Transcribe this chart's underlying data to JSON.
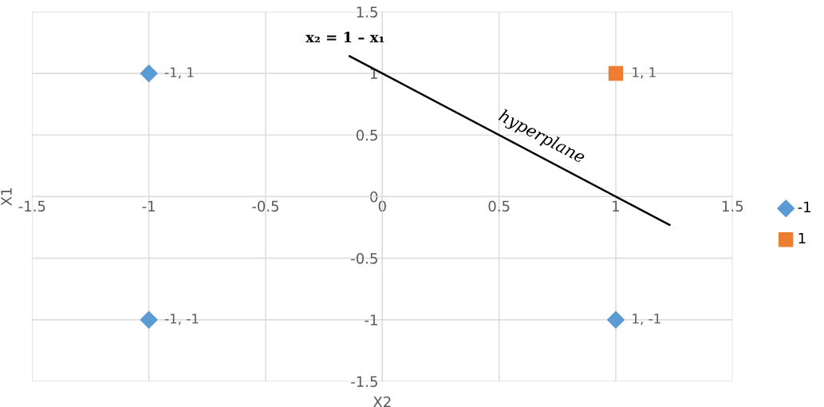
{
  "chart_data": {
    "type": "scatter",
    "xlabel": "X2",
    "ylabel": "X1",
    "xlim": [
      -1.5,
      1.5
    ],
    "ylim": [
      -1.5,
      1.5
    ],
    "xticks": [
      -1.5,
      -1,
      -0.5,
      0,
      0.5,
      1,
      1.5
    ],
    "yticks": [
      -1.5,
      -1,
      -0.5,
      0,
      0.5,
      1,
      1.5
    ],
    "grid": true,
    "legend": "right",
    "series": [
      {
        "name": "-1",
        "color": "#5b9bd5",
        "marker": "diamond",
        "x": [
          -1,
          -1,
          1
        ],
        "values": [
          1,
          -1,
          -1
        ],
        "value_labels": [
          "-1, 1",
          "-1, -1",
          "1, -1"
        ]
      },
      {
        "name": "1",
        "color": "#ed7d31",
        "marker": "square",
        "x": [
          1
        ],
        "values": [
          1
        ],
        "value_labels": [
          "1, 1"
        ]
      },
      {
        "type": "line",
        "color": "#000000",
        "marker": "none",
        "x": [
          -0.14,
          1.23
        ],
        "values": [
          1.14,
          -0.23
        ]
      }
    ],
    "annotations": [
      "hyperplane",
      "x₂ = 1 – x₁"
    ]
  }
}
